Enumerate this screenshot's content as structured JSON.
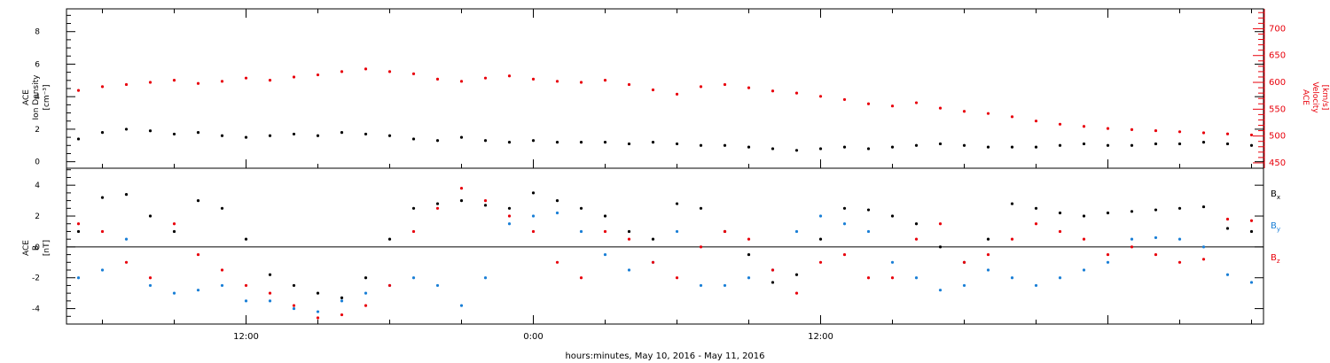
{
  "chart_data": [
    {
      "type": "scatter",
      "panel": "plasma",
      "ylabel_left": [
        "ACE",
        "Ion Density",
        "[cm⁻³]"
      ],
      "ylabel_right": [
        "ACE",
        "Velocity",
        "[km/s]"
      ],
      "ylim_left": [
        -0.4,
        9.4
      ],
      "yticks_left": [
        "0",
        "2",
        "4",
        "6",
        "8"
      ],
      "ylim_right": [
        440,
        737
      ],
      "yticks_right": [
        "450",
        "500",
        "550",
        "600",
        "650",
        "700"
      ],
      "series": [
        {
          "axis": "left",
          "color": "#000000",
          "x": [
            -7,
            -6,
            -5,
            -4,
            -3,
            -2,
            -1,
            0,
            1,
            2,
            3,
            4,
            5,
            6,
            7,
            8,
            9,
            10,
            11,
            12,
            13,
            14,
            15,
            16,
            17,
            18,
            19,
            20,
            21,
            22,
            23,
            24,
            25,
            26,
            27,
            28,
            29,
            30,
            31,
            32,
            33,
            34,
            35,
            36,
            37,
            38,
            39,
            40,
            41,
            42
          ],
          "y": [
            1.4,
            1.8,
            2.0,
            1.9,
            1.7,
            1.8,
            1.6,
            1.5,
            1.6,
            1.7,
            1.6,
            1.8,
            1.7,
            1.6,
            1.4,
            1.3,
            1.5,
            1.3,
            1.2,
            1.3,
            1.2,
            1.2,
            1.2,
            1.1,
            1.2,
            1.1,
            1.0,
            1.0,
            0.9,
            0.8,
            0.7,
            0.8,
            0.9,
            0.8,
            0.9,
            1.0,
            1.1,
            1.0,
            0.9,
            0.9,
            0.9,
            1.0,
            1.1,
            1.0,
            1.0,
            1.1,
            1.1,
            1.2,
            1.1,
            1.0
          ]
        },
        {
          "axis": "right",
          "color": "#e8000b",
          "x": [
            -7,
            -6,
            -5,
            -4,
            -3,
            -2,
            -1,
            0,
            1,
            2,
            3,
            4,
            5,
            6,
            7,
            8,
            9,
            10,
            11,
            12,
            13,
            14,
            15,
            16,
            17,
            18,
            19,
            20,
            21,
            22,
            23,
            24,
            25,
            26,
            27,
            28,
            29,
            30,
            31,
            32,
            33,
            34,
            35,
            36,
            37,
            38,
            39,
            40,
            41,
            42
          ],
          "y": [
            585,
            592,
            596,
            600,
            604,
            598,
            602,
            608,
            604,
            610,
            614,
            620,
            625,
            620,
            616,
            606,
            602,
            608,
            612,
            606,
            602,
            600,
            604,
            596,
            586,
            578,
            592,
            596,
            590,
            584,
            580,
            574,
            568,
            560,
            556,
            562,
            552,
            546,
            542,
            536,
            528,
            522,
            518,
            514,
            512,
            510,
            508,
            506,
            504,
            502
          ]
        }
      ]
    },
    {
      "type": "scatter",
      "panel": "magnetic-field",
      "ylabel": [
        "ACE",
        "B",
        "[nT]"
      ],
      "ylim": [
        -5,
        5.1
      ],
      "yticks": [
        "-4",
        "-2",
        "0",
        "2",
        "4"
      ],
      "zero_line": true,
      "xlim": [
        -7.5,
        42.5
      ],
      "xticks": [
        {
          "x": 0,
          "label": "12:00"
        },
        {
          "x": 12,
          "label": "0:00"
        },
        {
          "x": 24,
          "label": "12:00"
        }
      ],
      "xlabel": "hours:minutes, May 10, 2016 - May 11, 2016",
      "series": [
        {
          "name": "Bx",
          "base": "B",
          "sub": "x",
          "color": "#000000",
          "x": [
            -7,
            -6,
            -5,
            -4,
            -3,
            -2,
            -1,
            0,
            1,
            2,
            3,
            4,
            5,
            6,
            7,
            8,
            9,
            10,
            11,
            12,
            13,
            14,
            15,
            16,
            17,
            18,
            19,
            20,
            21,
            22,
            23,
            24,
            25,
            26,
            27,
            28,
            29,
            30,
            31,
            32,
            33,
            34,
            35,
            36,
            37,
            38,
            39,
            40,
            41,
            42
          ],
          "y": [
            1.0,
            3.2,
            3.4,
            2.0,
            1.0,
            3.0,
            2.5,
            0.5,
            -1.8,
            -2.5,
            -3.0,
            -3.3,
            -2.0,
            0.5,
            2.5,
            2.8,
            3.0,
            2.7,
            2.5,
            3.5,
            3.0,
            2.5,
            2.0,
            1.0,
            0.5,
            2.8,
            2.5,
            1.0,
            -0.5,
            -2.3,
            -1.8,
            0.5,
            2.5,
            2.4,
            2.0,
            1.5,
            0.0,
            -1.0,
            0.5,
            2.8,
            2.5,
            2.2,
            2.0,
            2.2,
            2.3,
            2.4,
            2.5,
            2.6,
            1.2,
            1.0
          ]
        },
        {
          "name": "By",
          "base": "B",
          "sub": "y",
          "color": "#1a7fd6",
          "x": [
            -7,
            -6,
            -5,
            -4,
            -3,
            -2,
            -1,
            0,
            1,
            2,
            3,
            4,
            5,
            6,
            7,
            8,
            9,
            10,
            11,
            12,
            13,
            14,
            15,
            16,
            17,
            18,
            19,
            20,
            21,
            22,
            23,
            24,
            25,
            26,
            27,
            28,
            29,
            30,
            31,
            32,
            33,
            34,
            35,
            36,
            37,
            38,
            39,
            40,
            41,
            42
          ],
          "y": [
            -2.0,
            -1.5,
            0.5,
            -2.5,
            -3.0,
            -2.8,
            -2.5,
            -3.5,
            -3.5,
            -4.0,
            -4.2,
            -3.5,
            -3.0,
            -2.5,
            -2.0,
            -2.5,
            -3.8,
            -2.0,
            1.5,
            2.0,
            2.2,
            1.0,
            -0.5,
            -1.5,
            -1.0,
            1.0,
            -2.5,
            -2.5,
            -2.0,
            -1.5,
            1.0,
            2.0,
            1.5,
            1.0,
            -1.0,
            -2.0,
            -2.8,
            -2.5,
            -1.5,
            -2.0,
            -2.5,
            -2.0,
            -1.5,
            -1.0,
            0.5,
            0.6,
            0.5,
            0.0,
            -1.8,
            -2.3
          ]
        },
        {
          "name": "Bz",
          "base": "B",
          "sub": "z",
          "color": "#e8000b",
          "x": [
            -7,
            -6,
            -5,
            -4,
            -3,
            -2,
            -1,
            0,
            1,
            2,
            3,
            4,
            5,
            6,
            7,
            8,
            9,
            10,
            11,
            12,
            13,
            14,
            15,
            16,
            17,
            18,
            19,
            20,
            21,
            22,
            23,
            24,
            25,
            26,
            27,
            28,
            29,
            30,
            31,
            32,
            33,
            34,
            35,
            36,
            37,
            38,
            39,
            40,
            41,
            42
          ],
          "y": [
            1.5,
            1.0,
            -1.0,
            -2.0,
            1.5,
            -0.5,
            -1.5,
            -2.5,
            -3.0,
            -3.8,
            -4.6,
            -4.4,
            -3.8,
            -2.5,
            1.0,
            2.5,
            3.8,
            3.0,
            2.0,
            1.0,
            -1.0,
            -2.0,
            1.0,
            0.5,
            -1.0,
            -2.0,
            0.0,
            1.0,
            0.5,
            -1.5,
            -3.0,
            -1.0,
            -0.5,
            -2.0,
            -2.0,
            0.5,
            1.5,
            -1.0,
            -0.5,
            0.5,
            1.5,
            1.0,
            0.5,
            -0.5,
            0.0,
            -0.5,
            -1.0,
            -0.8,
            1.8,
            1.7
          ]
        }
      ]
    }
  ]
}
